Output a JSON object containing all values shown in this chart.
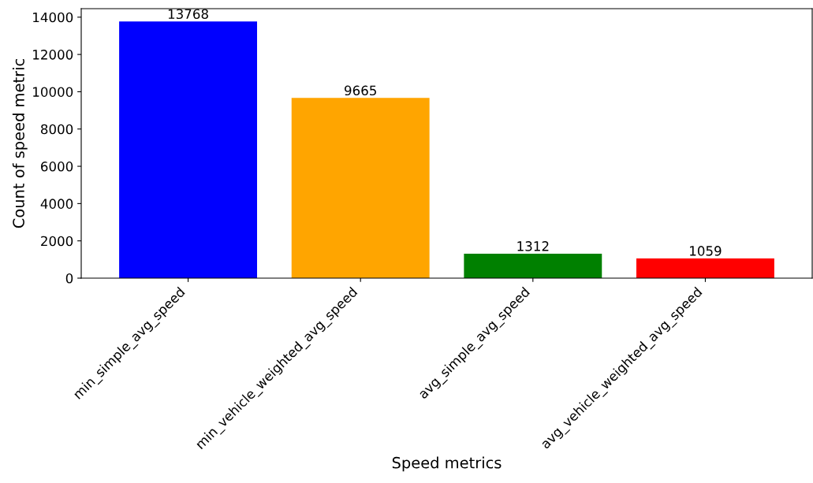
{
  "chart_data": {
    "type": "bar",
    "xlabel": "Speed metrics",
    "ylabel": "Count of speed metric",
    "categories": [
      "min_simple_avg_speed",
      "min_vehicle_weighted_avg_speed",
      "avg_simple_avg_speed",
      "avg_vehicle_weighted_avg_speed"
    ],
    "values": [
      13768,
      9665,
      1312,
      1059
    ],
    "colors": [
      "#0000ff",
      "#ffa500",
      "#008000",
      "#ff0000"
    ],
    "ylim": [
      0,
      14456
    ],
    "yticks": [
      0,
      2000,
      4000,
      6000,
      8000,
      10000,
      12000,
      14000
    ],
    "data_labels": true,
    "grid": false
  }
}
